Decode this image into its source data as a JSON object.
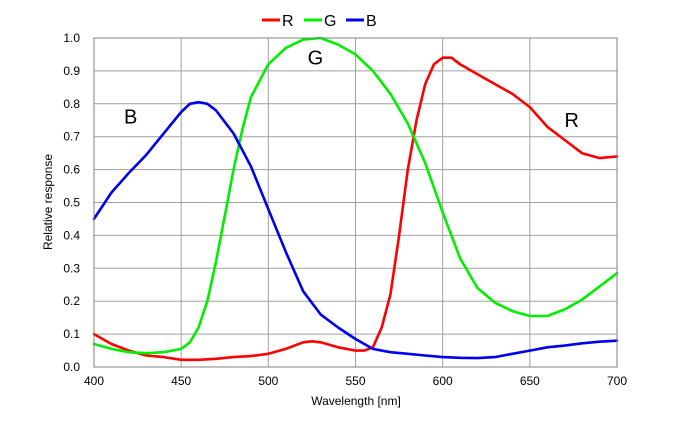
{
  "chart_data": {
    "type": "line",
    "title": "",
    "xlabel": "Wavelength [nm]",
    "ylabel": "Relative response",
    "xlim": [
      400,
      700
    ],
    "ylim": [
      0,
      1.0
    ],
    "xticks": [
      "400",
      "450",
      "500",
      "550",
      "600",
      "650",
      "700"
    ],
    "yticks": [
      "0.0",
      "0.1",
      "0.2",
      "0.3",
      "0.4",
      "0.5",
      "0.6",
      "0.7",
      "0.8",
      "0.9",
      "1.0"
    ],
    "grid": true,
    "legend_position": "top-center",
    "series": [
      {
        "name": "R",
        "color": "#ff0000",
        "x": [
          400,
          410,
          420,
          430,
          440,
          450,
          460,
          470,
          480,
          490,
          500,
          510,
          520,
          525,
          530,
          540,
          550,
          555,
          560,
          565,
          570,
          575,
          580,
          585,
          590,
          595,
          600,
          605,
          610,
          620,
          630,
          640,
          650,
          660,
          670,
          680,
          690,
          700
        ],
        "y": [
          0.1,
          0.07,
          0.05,
          0.035,
          0.03,
          0.022,
          0.022,
          0.025,
          0.03,
          0.033,
          0.04,
          0.055,
          0.075,
          0.078,
          0.075,
          0.06,
          0.05,
          0.05,
          0.06,
          0.12,
          0.22,
          0.4,
          0.6,
          0.75,
          0.86,
          0.92,
          0.94,
          0.94,
          0.92,
          0.89,
          0.86,
          0.83,
          0.79,
          0.73,
          0.69,
          0.65,
          0.635,
          0.64
        ]
      },
      {
        "name": "G",
        "color": "#00ee00",
        "x": [
          400,
          410,
          420,
          430,
          440,
          450,
          455,
          460,
          465,
          470,
          475,
          480,
          485,
          490,
          500,
          510,
          520,
          530,
          540,
          550,
          560,
          570,
          580,
          590,
          600,
          610,
          620,
          630,
          640,
          650,
          660,
          670,
          680,
          690,
          700
        ],
        "y": [
          0.07,
          0.055,
          0.045,
          0.042,
          0.045,
          0.055,
          0.075,
          0.12,
          0.2,
          0.32,
          0.46,
          0.6,
          0.72,
          0.82,
          0.92,
          0.97,
          0.995,
          1.0,
          0.98,
          0.95,
          0.9,
          0.83,
          0.74,
          0.62,
          0.47,
          0.33,
          0.24,
          0.195,
          0.17,
          0.155,
          0.155,
          0.175,
          0.205,
          0.245,
          0.285
        ]
      },
      {
        "name": "B",
        "color": "#0000ee",
        "x": [
          400,
          410,
          420,
          430,
          440,
          450,
          455,
          460,
          465,
          470,
          480,
          490,
          500,
          510,
          520,
          530,
          540,
          550,
          560,
          570,
          580,
          590,
          600,
          610,
          620,
          630,
          640,
          650,
          660,
          670,
          680,
          690,
          700
        ],
        "y": [
          0.45,
          0.53,
          0.59,
          0.645,
          0.71,
          0.775,
          0.8,
          0.805,
          0.8,
          0.78,
          0.71,
          0.61,
          0.48,
          0.35,
          0.23,
          0.16,
          0.12,
          0.085,
          0.055,
          0.045,
          0.04,
          0.035,
          0.03,
          0.028,
          0.027,
          0.03,
          0.04,
          0.05,
          0.06,
          0.065,
          0.072,
          0.077,
          0.08
        ]
      }
    ],
    "annotations": [
      {
        "text": "B",
        "x": 421,
        "y": 0.74
      },
      {
        "text": "G",
        "x": 527,
        "y": 0.92
      },
      {
        "text": "R",
        "x": 674,
        "y": 0.73
      }
    ]
  }
}
